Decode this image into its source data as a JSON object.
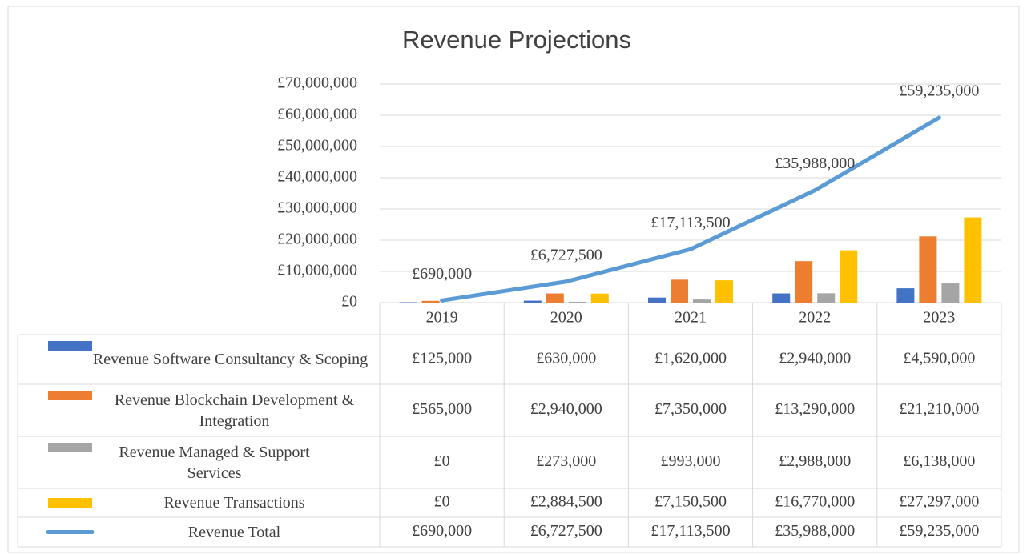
{
  "chart_data": {
    "type": "bar",
    "title": "Revenue Projections",
    "categories": [
      "2019",
      "2020",
      "2021",
      "2022",
      "2023"
    ],
    "ylim": [
      0,
      70000000
    ],
    "yticks": [
      {
        "value": 0,
        "label": "£0"
      },
      {
        "value": 10000000,
        "label": "£10,000,000"
      },
      {
        "value": 20000000,
        "label": "£20,000,000"
      },
      {
        "value": 30000000,
        "label": "£30,000,000"
      },
      {
        "value": 40000000,
        "label": "£40,000,000"
      },
      {
        "value": 50000000,
        "label": "£50,000,000"
      },
      {
        "value": 60000000,
        "label": "£60,000,000"
      },
      {
        "value": 70000000,
        "label": "£70,000,000"
      }
    ],
    "grid": true,
    "series": [
      {
        "name": "Revenue Software Consultancy & Scoping",
        "type": "bar",
        "color": "#4472c4",
        "values": [
          125000,
          630000,
          1620000,
          2940000,
          4590000
        ],
        "value_labels": [
          "£125,000",
          "£630,000",
          "£1,620,000",
          "£2,940,000",
          "£4,590,000"
        ]
      },
      {
        "name": "Revenue Blockchain Development & Integration",
        "type": "bar",
        "color": "#ed7d31",
        "values": [
          565000,
          2940000,
          7350000,
          13290000,
          21210000
        ],
        "value_labels": [
          "£565,000",
          "£2,940,000",
          "£7,350,000",
          "£13,290,000",
          "£21,210,000"
        ]
      },
      {
        "name": "Revenue Managed & Support Services",
        "type": "bar",
        "color": "#a5a5a5",
        "values": [
          0,
          273000,
          993000,
          2988000,
          6138000
        ],
        "value_labels": [
          "£0",
          "£273,000",
          "£993,000",
          "£2,988,000",
          "£6,138,000"
        ]
      },
      {
        "name": "Revenue Transactions",
        "type": "bar",
        "color": "#ffc000",
        "values": [
          0,
          2884500,
          7150500,
          16770000,
          27297000
        ],
        "value_labels": [
          "£0",
          "£2,884,500",
          "£7,150,500",
          "£16,770,000",
          "£27,297,000"
        ]
      },
      {
        "name": "Revenue Total",
        "type": "line",
        "color": "#5b9bd5",
        "values": [
          690000,
          6727500,
          17113500,
          35988000,
          59235000
        ],
        "value_labels": [
          "£690,000",
          "£6,727,500",
          "£17,113,500",
          "£35,988,000",
          "£59,235,000"
        ]
      }
    ]
  }
}
